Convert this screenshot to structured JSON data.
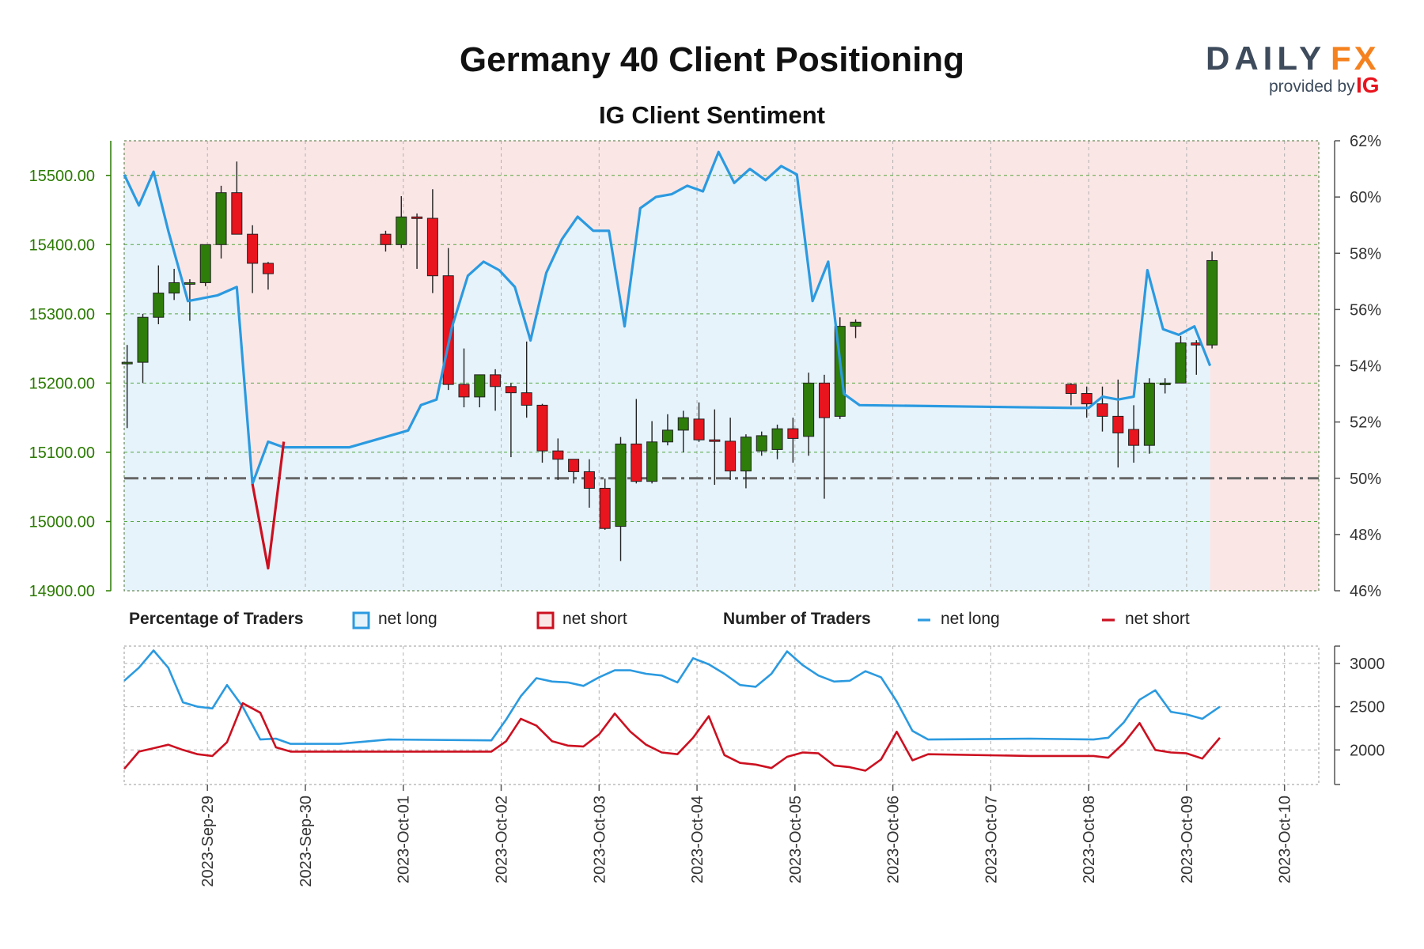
{
  "chart_data": {
    "type": "candlestick+line",
    "title": "Germany 40 Client Positioning",
    "subtitle": "IG Client Sentiment",
    "brand": {
      "name_part1": "DAILY",
      "name_part2": "FX",
      "provided_by": "provided by",
      "provider": "IG"
    },
    "colors": {
      "up_candle": "#2e7d0a",
      "down_candle": "#e8141e",
      "net_long": "#2b9ae0",
      "net_short": "#cc1020",
      "long_fill": "#e6f3fb",
      "short_fill": "#fbe6e6",
      "price_axis": "#2a7a00",
      "grid": "#3a9a22"
    },
    "price_axis": {
      "ylim": [
        14900,
        15550
      ],
      "ticks": [
        "14900.00",
        "15000.00",
        "15100.00",
        "15200.00",
        "15300.00",
        "15400.00",
        "15500.00"
      ]
    },
    "pct_axis": {
      "ylim": [
        46,
        62
      ],
      "ticks": [
        "46%",
        "48%",
        "50%",
        "52%",
        "54%",
        "56%",
        "58%",
        "60%",
        "62%"
      ],
      "reference": 50
    },
    "count_axis": {
      "ylim": [
        1600,
        3200
      ],
      "ticks": [
        "2000",
        "2500",
        "3000"
      ]
    },
    "x_labels": [
      "2023-Sep-29",
      "2023-Sep-30",
      "2023-Oct-01",
      "2023-Oct-02",
      "2023-Oct-03",
      "2023-Oct-04",
      "2023-Oct-05",
      "2023-Oct-06",
      "2023-Oct-07",
      "2023-Oct-08",
      "2023-Oct-09",
      "2023-Oct-10"
    ],
    "x_range_days": [
      -0.85,
      11.35
    ],
    "legend": {
      "pct_heading": "Percentage of Traders",
      "count_heading": "Number of Traders",
      "net_long": "net long",
      "net_short": "net short"
    },
    "candles": [
      [
        -0.82,
        15230,
        15230,
        15255,
        15135
      ],
      [
        -0.66,
        15230,
        15295,
        15300,
        15200
      ],
      [
        -0.5,
        15295,
        15330,
        15370,
        15285
      ],
      [
        -0.34,
        15330,
        15345,
        15365,
        15320
      ],
      [
        -0.18,
        15345,
        15345,
        15350,
        15290
      ],
      [
        -0.02,
        15345,
        15400,
        15400,
        15340
      ],
      [
        0.14,
        15400,
        15475,
        15485,
        15380
      ],
      [
        0.3,
        15475,
        15415,
        15520,
        15415
      ],
      [
        0.46,
        15415,
        15373,
        15428,
        15330
      ],
      [
        0.62,
        15373,
        15358,
        15375,
        15335
      ],
      [
        1.82,
        15415,
        15400,
        15420,
        15390
      ],
      [
        1.98,
        15400,
        15440,
        15470,
        15395
      ],
      [
        2.14,
        15440,
        15438,
        15445,
        15365
      ],
      [
        2.3,
        15438,
        15355,
        15480,
        15330
      ],
      [
        2.46,
        15355,
        15198,
        15395,
        15190
      ],
      [
        2.62,
        15198,
        15180,
        15250,
        15165
      ],
      [
        2.78,
        15180,
        15212,
        15212,
        15165
      ],
      [
        2.94,
        15212,
        15195,
        15220,
        15160
      ],
      [
        3.1,
        15195,
        15186,
        15200,
        15093
      ],
      [
        3.26,
        15186,
        15168,
        15260,
        15150
      ],
      [
        3.42,
        15168,
        15102,
        15170,
        15085
      ],
      [
        3.58,
        15102,
        15090,
        15120,
        15060
      ],
      [
        3.74,
        15090,
        15072,
        15090,
        15055
      ],
      [
        3.9,
        15072,
        15048,
        15090,
        15020
      ],
      [
        4.06,
        15048,
        14990,
        15062,
        14988
      ],
      [
        4.22,
        14993,
        15112,
        15122,
        14943
      ],
      [
        4.38,
        15112,
        15058,
        15177,
        15055
      ],
      [
        4.54,
        15058,
        15115,
        15145,
        15055
      ],
      [
        4.7,
        15115,
        15132,
        15155,
        15110
      ],
      [
        4.86,
        15132,
        15150,
        15160,
        15100
      ],
      [
        5.02,
        15148,
        15118,
        15172,
        15115
      ],
      [
        5.18,
        15118,
        15116,
        15162,
        15053
      ],
      [
        5.34,
        15116,
        15073,
        15150,
        15060
      ],
      [
        5.5,
        15073,
        15122,
        15126,
        15048
      ],
      [
        5.66,
        15102,
        15124,
        15130,
        15095
      ],
      [
        5.82,
        15104,
        15134,
        15140,
        15090
      ],
      [
        5.98,
        15134,
        15120,
        15150,
        15085
      ],
      [
        6.14,
        15123,
        15200,
        15215,
        15095
      ],
      [
        6.3,
        15200,
        15150,
        15212,
        15033
      ],
      [
        6.46,
        15152,
        15282,
        15295,
        15148
      ],
      [
        6.62,
        15282,
        15288,
        15292,
        15265
      ],
      [
        8.82,
        15198,
        15185,
        15200,
        15168
      ],
      [
        8.98,
        15185,
        15170,
        15195,
        15150
      ],
      [
        9.14,
        15170,
        15152,
        15195,
        15130
      ],
      [
        9.3,
        15152,
        15128,
        15205,
        15078
      ],
      [
        9.46,
        15133,
        15110,
        15168,
        15085
      ],
      [
        9.62,
        15110,
        15200,
        15207,
        15098
      ],
      [
        9.78,
        15200,
        15200,
        15207,
        15185
      ],
      [
        9.94,
        15200,
        15258,
        15268,
        15200
      ],
      [
        10.1,
        15258,
        15255,
        15262,
        15212
      ],
      [
        10.26,
        15255,
        15377,
        15390,
        15250
      ]
    ],
    "pct_long": [
      [
        -0.85,
        60.8
      ],
      [
        -0.7,
        59.7
      ],
      [
        -0.55,
        60.9
      ],
      [
        -0.4,
        58.8
      ],
      [
        -0.2,
        56.3
      ],
      [
        0.1,
        56.5
      ],
      [
        0.3,
        56.8
      ],
      [
        0.46,
        49.8
      ],
      [
        0.62,
        51.3
      ],
      [
        0.78,
        51.1
      ],
      [
        1.45,
        51.1
      ],
      [
        2.05,
        51.7
      ],
      [
        2.18,
        52.6
      ],
      [
        2.34,
        52.8
      ],
      [
        2.5,
        55.4
      ],
      [
        2.66,
        57.2
      ],
      [
        2.82,
        57.7
      ],
      [
        2.98,
        57.4
      ],
      [
        3.14,
        56.8
      ],
      [
        3.3,
        54.9
      ],
      [
        3.46,
        57.3
      ],
      [
        3.62,
        58.5
      ],
      [
        3.78,
        59.3
      ],
      [
        3.94,
        58.8
      ],
      [
        4.1,
        58.8
      ],
      [
        4.26,
        55.4
      ],
      [
        4.42,
        59.6
      ],
      [
        4.58,
        60.0
      ],
      [
        4.74,
        60.1
      ],
      [
        4.9,
        60.4
      ],
      [
        5.06,
        60.2
      ],
      [
        5.22,
        61.6
      ],
      [
        5.38,
        60.5
      ],
      [
        5.54,
        61.0
      ],
      [
        5.7,
        60.6
      ],
      [
        5.86,
        61.1
      ],
      [
        6.02,
        60.8
      ],
      [
        6.18,
        56.3
      ],
      [
        6.34,
        57.7
      ],
      [
        6.5,
        53.0
      ],
      [
        6.66,
        52.6
      ],
      [
        8.85,
        52.5
      ],
      [
        9.0,
        52.5
      ],
      [
        9.14,
        52.9
      ],
      [
        9.3,
        52.8
      ],
      [
        9.46,
        52.9
      ],
      [
        9.6,
        57.4
      ],
      [
        9.76,
        55.3
      ],
      [
        9.92,
        55.1
      ],
      [
        10.08,
        55.4
      ],
      [
        10.24,
        54.0
      ]
    ],
    "pct_short": [
      [
        0.46,
        49.8
      ],
      [
        0.62,
        46.8
      ],
      [
        0.78,
        51.3
      ]
    ],
    "count_long": [
      [
        -0.85,
        2800
      ],
      [
        -0.7,
        2950
      ],
      [
        -0.55,
        3150
      ],
      [
        -0.4,
        2950
      ],
      [
        -0.25,
        2550
      ],
      [
        -0.1,
        2500
      ],
      [
        0.05,
        2480
      ],
      [
        0.2,
        2750
      ],
      [
        0.36,
        2500
      ],
      [
        0.54,
        2120
      ],
      [
        0.7,
        2130
      ],
      [
        0.85,
        2070
      ],
      [
        1.35,
        2070
      ],
      [
        1.85,
        2120
      ],
      [
        2.9,
        2110
      ],
      [
        3.05,
        2350
      ],
      [
        3.2,
        2620
      ],
      [
        3.36,
        2830
      ],
      [
        3.52,
        2790
      ],
      [
        3.68,
        2780
      ],
      [
        3.84,
        2740
      ],
      [
        4.0,
        2840
      ],
      [
        4.16,
        2920
      ],
      [
        4.32,
        2920
      ],
      [
        4.48,
        2880
      ],
      [
        4.64,
        2860
      ],
      [
        4.8,
        2780
      ],
      [
        4.96,
        3060
      ],
      [
        5.12,
        2990
      ],
      [
        5.28,
        2880
      ],
      [
        5.44,
        2750
      ],
      [
        5.6,
        2730
      ],
      [
        5.76,
        2880
      ],
      [
        5.92,
        3140
      ],
      [
        6.08,
        2980
      ],
      [
        6.24,
        2860
      ],
      [
        6.4,
        2790
      ],
      [
        6.56,
        2800
      ],
      [
        6.72,
        2910
      ],
      [
        6.88,
        2840
      ],
      [
        7.04,
        2560
      ],
      [
        7.2,
        2220
      ],
      [
        7.36,
        2120
      ],
      [
        8.4,
        2130
      ],
      [
        9.05,
        2120
      ],
      [
        9.2,
        2140
      ],
      [
        9.36,
        2320
      ],
      [
        9.52,
        2580
      ],
      [
        9.68,
        2690
      ],
      [
        9.84,
        2440
      ],
      [
        10.0,
        2410
      ],
      [
        10.16,
        2360
      ],
      [
        10.34,
        2500
      ]
    ],
    "count_short": [
      [
        -0.85,
        1780
      ],
      [
        -0.7,
        1980
      ],
      [
        -0.55,
        2020
      ],
      [
        -0.4,
        2060
      ],
      [
        -0.25,
        2000
      ],
      [
        -0.1,
        1950
      ],
      [
        0.05,
        1930
      ],
      [
        0.2,
        2090
      ],
      [
        0.36,
        2540
      ],
      [
        0.54,
        2430
      ],
      [
        0.7,
        2030
      ],
      [
        0.85,
        1980
      ],
      [
        1.35,
        1980
      ],
      [
        1.85,
        1980
      ],
      [
        2.9,
        1980
      ],
      [
        3.05,
        2100
      ],
      [
        3.2,
        2360
      ],
      [
        3.36,
        2280
      ],
      [
        3.52,
        2100
      ],
      [
        3.68,
        2050
      ],
      [
        3.84,
        2040
      ],
      [
        4.0,
        2180
      ],
      [
        4.16,
        2420
      ],
      [
        4.32,
        2210
      ],
      [
        4.48,
        2060
      ],
      [
        4.64,
        1970
      ],
      [
        4.8,
        1950
      ],
      [
        4.96,
        2140
      ],
      [
        5.12,
        2390
      ],
      [
        5.28,
        1940
      ],
      [
        5.44,
        1850
      ],
      [
        5.6,
        1830
      ],
      [
        5.76,
        1790
      ],
      [
        5.92,
        1920
      ],
      [
        6.08,
        1970
      ],
      [
        6.24,
        1960
      ],
      [
        6.4,
        1820
      ],
      [
        6.56,
        1800
      ],
      [
        6.72,
        1760
      ],
      [
        6.88,
        1890
      ],
      [
        7.04,
        2210
      ],
      [
        7.2,
        1880
      ],
      [
        7.36,
        1950
      ],
      [
        8.4,
        1930
      ],
      [
        9.05,
        1930
      ],
      [
        9.2,
        1910
      ],
      [
        9.36,
        2080
      ],
      [
        9.52,
        2310
      ],
      [
        9.68,
        2000
      ],
      [
        9.84,
        1970
      ],
      [
        10.0,
        1960
      ],
      [
        10.16,
        1900
      ],
      [
        10.34,
        2140
      ]
    ]
  }
}
